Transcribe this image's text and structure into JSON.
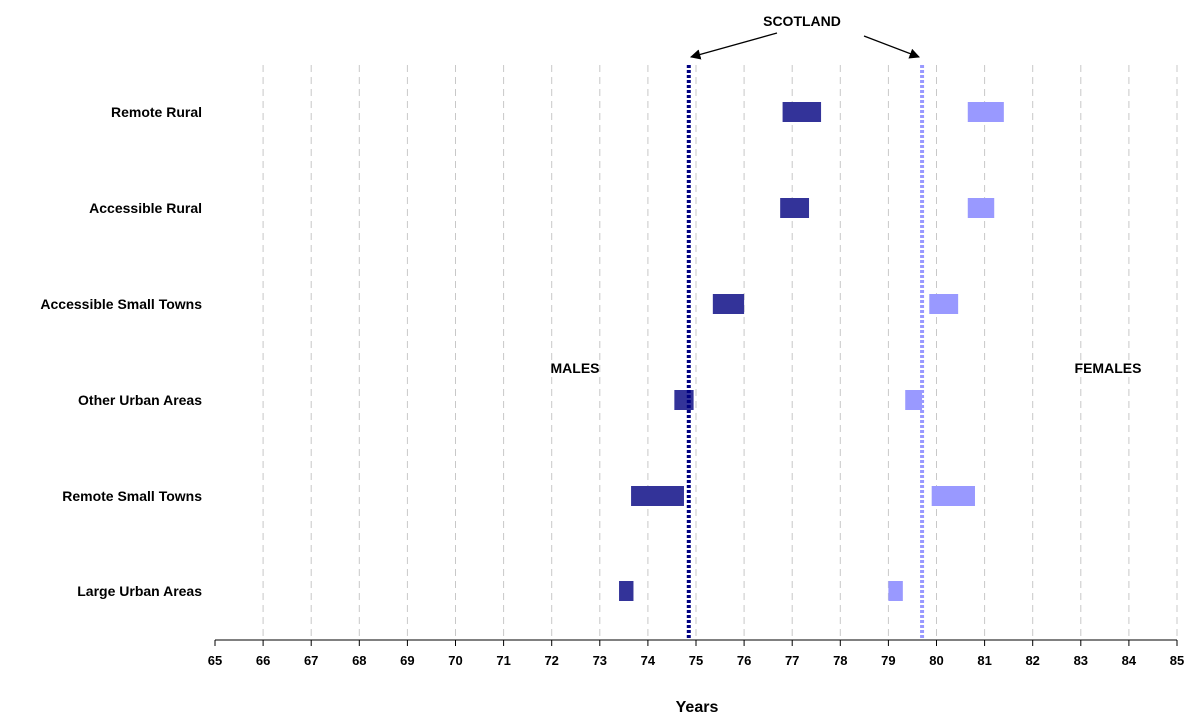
{
  "chart_data": {
    "type": "bar",
    "subtype": "floating-range",
    "xlabel": "Years",
    "xlim": [
      65,
      85
    ],
    "x_ticks": [
      "65",
      "66",
      "67",
      "68",
      "69",
      "70",
      "71",
      "72",
      "73",
      "74",
      "75",
      "76",
      "77",
      "78",
      "79",
      "80",
      "81",
      "82",
      "83",
      "84",
      "85"
    ],
    "grid": "vertical-dashed",
    "categories": [
      "Remote Rural",
      "Accessible Rural",
      "Accessible Small Towns",
      "Other Urban Areas",
      "Remote Small Towns",
      "Large Urban Areas"
    ],
    "series": [
      {
        "name": "MALES",
        "color": "#333399",
        "ranges": [
          [
            76.8,
            77.6
          ],
          [
            76.75,
            77.35
          ],
          [
            75.35,
            76.0
          ],
          [
            74.55,
            74.95
          ],
          [
            73.65,
            74.75
          ],
          [
            73.4,
            73.7
          ]
        ]
      },
      {
        "name": "FEMALES",
        "color": "#9999ff",
        "ranges": [
          [
            80.65,
            81.4
          ],
          [
            80.65,
            81.2
          ],
          [
            79.85,
            80.45
          ],
          [
            79.35,
            79.7
          ],
          [
            79.9,
            80.8
          ],
          [
            79.0,
            79.3
          ]
        ]
      }
    ],
    "reference_lines": [
      {
        "series": "MALES",
        "value": 74.85,
        "color": "#000080",
        "style": "dotted"
      },
      {
        "series": "FEMALES",
        "value": 79.7,
        "color": "#9999ff",
        "style": "dotted"
      }
    ],
    "annotations": {
      "scotland": "SCOTLAND",
      "males": "MALES",
      "females": "FEMALES"
    }
  }
}
